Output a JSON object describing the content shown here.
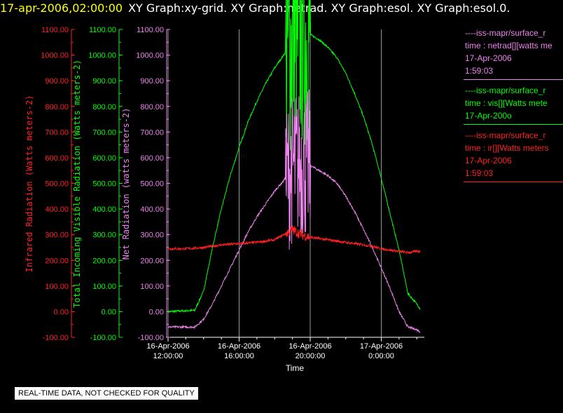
{
  "title": {
    "date": "17-apr-2006,02:00:00",
    "graphs": "XY Graph:xy-grid.  XY Graph:netrad.  XY Graph:esol.  XY Graph:esol.0."
  },
  "notice": "REAL-TIME DATA, NOT CHECKED FOR QUALITY",
  "colors": {
    "infrared": "#ff2020",
    "visible": "#00ff00",
    "net": "#ee82ee",
    "axis": "#ffffff",
    "grid": "#c0c0c0",
    "title_date": "#ffff00"
  },
  "legend": [
    {
      "lines": [
        "----iss-mapr/surface_r",
        "time : netrad[][watts me",
        "17-Apr-2006",
        "1:59:03"
      ],
      "color": "#ee82ee"
    },
    {
      "lines": [
        "----iss-mapr/surface_r",
        "time : vis[][Watts mete",
        "17-Apr-200o"
      ],
      "color": "#00ff00"
    },
    {
      "lines": [
        "----iss-mapr/surface_r",
        "time : ir[][Watts meters",
        "17-Apr-2006",
        "1:59:03"
      ],
      "color": "#ff2020"
    }
  ],
  "chart_data": {
    "type": "line",
    "xlabel": "Time",
    "x_ticks": [
      {
        "line1": "16-Apr-2006",
        "line2": "12:00:00",
        "hours": 12
      },
      {
        "line1": "16-Apr-2006",
        "line2": "16:00:00",
        "hours": 16
      },
      {
        "line1": "16-Apr-2006",
        "line2": "20:00:00",
        "hours": 20
      },
      {
        "line1": "17-Apr-2006",
        "line2": "0:00:00",
        "hours": 24
      }
    ],
    "xlim_hours": [
      12,
      26.2
    ],
    "ylim": [
      -100,
      1100
    ],
    "y_ticks": [
      "1100.00",
      "1000.00",
      "900.00",
      "800.00",
      "700.00",
      "600.00",
      "500.00",
      "400.00",
      "300.00",
      "200.00",
      "100.00",
      "0.00",
      "-100.00"
    ],
    "axes": [
      {
        "label": "Infrared Radiation (Watts meters-2)",
        "color": "#ff2020"
      },
      {
        "label": "Total Incoming Visible Radiation (Watts meters-2)",
        "color": "#00ff00"
      },
      {
        "label": "Net Radiation (watts meters-2)",
        "color": "#ee82ee"
      }
    ],
    "series": [
      {
        "name": "vis",
        "color": "#00ff00",
        "x": [
          12,
          13.5,
          14,
          14.5,
          15,
          15.5,
          16,
          16.5,
          17,
          17.5,
          18,
          18.5,
          19,
          19.5,
          20,
          20.5,
          21,
          21.5,
          22,
          22.5,
          23,
          23.5,
          24,
          24.5,
          25,
          25.5,
          26,
          26.2
        ],
        "y": [
          0,
          5,
          80,
          250,
          400,
          530,
          640,
          740,
          820,
          890,
          950,
          1000,
          1050,
          1070,
          1080,
          1060,
          1030,
          990,
          930,
          850,
          760,
          650,
          520,
          380,
          240,
          70,
          30,
          10
        ]
      },
      {
        "name": "netrad",
        "color": "#ee82ee",
        "x": [
          12,
          13.5,
          14,
          14.5,
          15,
          15.5,
          16,
          16.5,
          17,
          17.5,
          18,
          18.5,
          19,
          19.5,
          20,
          20.5,
          21,
          21.5,
          22,
          22.5,
          23,
          23.5,
          24,
          24.5,
          25,
          25.5,
          26,
          26.2
        ],
        "y": [
          -60,
          -60,
          -30,
          30,
          100,
          170,
          240,
          310,
          370,
          420,
          470,
          510,
          560,
          580,
          570,
          550,
          530,
          500,
          450,
          390,
          320,
          250,
          170,
          90,
          0,
          -60,
          -70,
          -80
        ]
      },
      {
        "name": "ir",
        "color": "#ff2020",
        "x": [
          12,
          13,
          14,
          15,
          16,
          17,
          18,
          18.5,
          19,
          19.5,
          20,
          20.5,
          21,
          21.5,
          22,
          22.5,
          23,
          23.5,
          24,
          24.5,
          25,
          25.5,
          26,
          26.2
        ],
        "y": [
          245,
          245,
          250,
          260,
          265,
          270,
          280,
          300,
          320,
          300,
          290,
          285,
          280,
          275,
          270,
          265,
          260,
          255,
          245,
          240,
          235,
          230,
          235,
          235
        ]
      }
    ]
  }
}
